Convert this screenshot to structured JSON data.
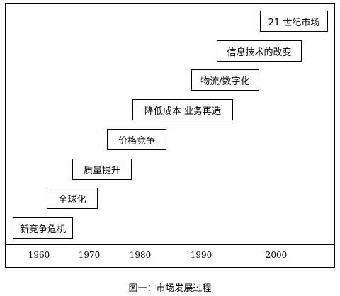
{
  "stages": [
    {
      "label": "新竞争危机"
    },
    {
      "label": "全球化"
    },
    {
      "label": "质量提升"
    },
    {
      "label": "价格竞争"
    },
    {
      "label": "降低成本  业务再造"
    },
    {
      "label": "物流/数字化"
    },
    {
      "label": "信息技术的改变"
    },
    {
      "label": "21 世纪市场"
    }
  ],
  "years": [
    "1960",
    "1970",
    "1980",
    "1990",
    "2000"
  ],
  "caption": "图一：市场发展过程"
}
